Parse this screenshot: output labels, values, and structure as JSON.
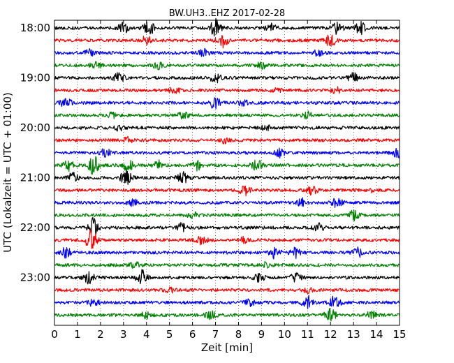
{
  "chart_data": {
    "type": "line",
    "title": "BW.UH3..EHZ 2017-02-28",
    "xlabel": "Zeit  [min]",
    "ylabel": "UTC (Lokalzeit = UTC + 01:00)",
    "xlim": [
      0,
      15
    ],
    "x_ticks": [
      "0",
      "1",
      "2",
      "3",
      "4",
      "5",
      "6",
      "7",
      "8",
      "9",
      "10",
      "11",
      "12",
      "13",
      "14",
      "15"
    ],
    "y_tick_labels": [
      "18:00",
      "19:00",
      "20:00",
      "21:00",
      "22:00",
      "23:00"
    ],
    "row_minutes": 15,
    "start_time": "18:00",
    "grid": "vertical dotted lines at each minute",
    "trace_colors": [
      "#000000",
      "#ff0000",
      "#0000ff",
      "#008000"
    ],
    "traces": [
      {
        "row_start": "18:00",
        "color": "#000000",
        "bursts": [
          {
            "t": 3.0,
            "a": 1.0
          },
          {
            "t": 4.1,
            "a": 1.4
          },
          {
            "t": 7.0,
            "a": 1.8
          },
          {
            "t": 9.4,
            "a": 0.8
          },
          {
            "t": 12.3,
            "a": 1.2
          },
          {
            "t": 13.3,
            "a": 1.3
          }
        ]
      },
      {
        "row_start": "18:15",
        "color": "#ff0000",
        "bursts": [
          {
            "t": 4.0,
            "a": 0.8
          },
          {
            "t": 7.3,
            "a": 1.4
          },
          {
            "t": 12.0,
            "a": 1.2
          }
        ]
      },
      {
        "row_start": "18:30",
        "color": "#0000ff",
        "bursts": [
          {
            "t": 1.5,
            "a": 0.6
          },
          {
            "t": 6.5,
            "a": 0.7
          },
          {
            "t": 11.5,
            "a": 0.6
          }
        ]
      },
      {
        "row_start": "18:45",
        "color": "#008000",
        "bursts": [
          {
            "t": 1.8,
            "a": 0.7
          },
          {
            "t": 4.5,
            "a": 0.6
          },
          {
            "t": 9.0,
            "a": 0.6
          }
        ]
      },
      {
        "row_start": "19:00",
        "color": "#000000",
        "bursts": [
          {
            "t": 2.8,
            "a": 1.0
          },
          {
            "t": 7.0,
            "a": 0.9
          },
          {
            "t": 13.0,
            "a": 0.9
          }
        ]
      },
      {
        "row_start": "19:15",
        "color": "#ff0000",
        "bursts": [
          {
            "t": 5.2,
            "a": 0.6
          },
          {
            "t": 9.6,
            "a": 0.6
          },
          {
            "t": 12.2,
            "a": 0.6
          }
        ]
      },
      {
        "row_start": "19:30",
        "color": "#0000ff",
        "bursts": [
          {
            "t": 0.5,
            "a": 0.9
          },
          {
            "t": 7.0,
            "a": 1.3
          },
          {
            "t": 8.2,
            "a": 0.6
          }
        ]
      },
      {
        "row_start": "19:45",
        "color": "#008000",
        "bursts": [
          {
            "t": 2.5,
            "a": 0.5
          },
          {
            "t": 5.6,
            "a": 0.6
          },
          {
            "t": 11.0,
            "a": 0.6
          }
        ]
      },
      {
        "row_start": "20:00",
        "color": "#000000",
        "bursts": [
          {
            "t": 2.8,
            "a": 0.5
          },
          {
            "t": 9.2,
            "a": 0.5
          }
        ]
      },
      {
        "row_start": "20:15",
        "color": "#ff0000",
        "bursts": [
          {
            "t": 3.2,
            "a": 0.5
          },
          {
            "t": 7.4,
            "a": 0.5
          }
        ]
      },
      {
        "row_start": "20:30",
        "color": "#0000ff",
        "bursts": [
          {
            "t": 2.2,
            "a": 0.8
          },
          {
            "t": 9.8,
            "a": 0.8
          },
          {
            "t": 14.9,
            "a": 0.9
          }
        ]
      },
      {
        "row_start": "20:45",
        "color": "#008000",
        "bursts": [
          {
            "t": 0.6,
            "a": 1.0
          },
          {
            "t": 1.7,
            "a": 1.8
          },
          {
            "t": 3.2,
            "a": 1.2
          },
          {
            "t": 4.5,
            "a": 1.0
          },
          {
            "t": 6.2,
            "a": 0.9
          },
          {
            "t": 8.8,
            "a": 1.0
          }
        ]
      },
      {
        "row_start": "21:00",
        "color": "#000000",
        "bursts": [
          {
            "t": 0.8,
            "a": 0.9
          },
          {
            "t": 3.1,
            "a": 1.5
          },
          {
            "t": 5.6,
            "a": 1.0
          }
        ]
      },
      {
        "row_start": "21:15",
        "color": "#ff0000",
        "bursts": [
          {
            "t": 8.3,
            "a": 1.2
          },
          {
            "t": 11.2,
            "a": 0.8
          },
          {
            "t": 13.6,
            "a": 0.6
          }
        ]
      },
      {
        "row_start": "21:30",
        "color": "#0000ff",
        "bursts": [
          {
            "t": 3.4,
            "a": 0.6
          },
          {
            "t": 10.8,
            "a": 0.8
          },
          {
            "t": 12.3,
            "a": 1.0
          }
        ]
      },
      {
        "row_start": "21:45",
        "color": "#008000",
        "bursts": [
          {
            "t": 6.0,
            "a": 0.5
          },
          {
            "t": 13.0,
            "a": 0.9
          }
        ]
      },
      {
        "row_start": "22:00",
        "color": "#000000",
        "bursts": [
          {
            "t": 1.7,
            "a": 1.8
          },
          {
            "t": 5.5,
            "a": 0.8
          },
          {
            "t": 11.5,
            "a": 0.7
          }
        ]
      },
      {
        "row_start": "22:15",
        "color": "#ff0000",
        "bursts": [
          {
            "t": 1.6,
            "a": 2.2
          },
          {
            "t": 6.4,
            "a": 0.9
          },
          {
            "t": 8.3,
            "a": 0.6
          }
        ]
      },
      {
        "row_start": "22:30",
        "color": "#0000ff",
        "bursts": [
          {
            "t": 0.5,
            "a": 1.0
          },
          {
            "t": 9.6,
            "a": 1.1
          },
          {
            "t": 10.5,
            "a": 1.0
          },
          {
            "t": 13.2,
            "a": 0.9
          }
        ]
      },
      {
        "row_start": "22:45",
        "color": "#008000",
        "bursts": [
          {
            "t": 3.5,
            "a": 0.5
          },
          {
            "t": 9.2,
            "a": 0.5
          }
        ]
      },
      {
        "row_start": "23:00",
        "color": "#000000",
        "bursts": [
          {
            "t": 1.5,
            "a": 1.2
          },
          {
            "t": 3.8,
            "a": 1.5
          },
          {
            "t": 8.9,
            "a": 0.8
          },
          {
            "t": 10.5,
            "a": 0.8
          }
        ]
      },
      {
        "row_start": "23:15",
        "color": "#ff0000",
        "bursts": [
          {
            "t": 5.0,
            "a": 0.5
          },
          {
            "t": 11.0,
            "a": 0.5
          }
        ]
      },
      {
        "row_start": "23:30",
        "color": "#0000ff",
        "bursts": [
          {
            "t": 1.7,
            "a": 0.8
          },
          {
            "t": 8.5,
            "a": 0.6
          },
          {
            "t": 11.0,
            "a": 1.3
          },
          {
            "t": 12.2,
            "a": 1.4
          }
        ]
      },
      {
        "row_start": "23:45",
        "color": "#008000",
        "bursts": [
          {
            "t": 4.0,
            "a": 0.6
          },
          {
            "t": 6.8,
            "a": 0.8
          },
          {
            "t": 12.0,
            "a": 1.1
          },
          {
            "t": 13.8,
            "a": 0.7
          }
        ]
      }
    ]
  }
}
